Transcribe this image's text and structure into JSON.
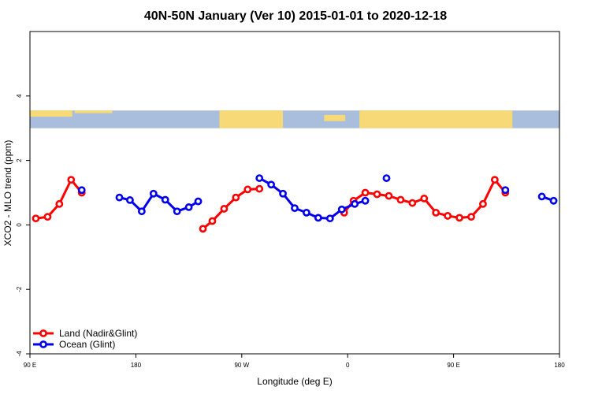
{
  "chart_data": {
    "type": "line",
    "title": "40N-50N January (Ver 10)   2015-01-01 to 2020-12-18",
    "xlabel": "Longitude (deg E)",
    "ylabel": "XCO2 - MLO trend (ppm)",
    "xlim": [
      90,
      540
    ],
    "ylim": [
      -4,
      6
    ],
    "x_ticks": [
      {
        "value": 90,
        "label": "90 E"
      },
      {
        "value": 180,
        "label": "180"
      },
      {
        "value": 270,
        "label": "90 W"
      },
      {
        "value": 360,
        "label": "0"
      },
      {
        "value": 450,
        "label": "90 E"
      },
      {
        "value": 540,
        "label": "180"
      }
    ],
    "y_ticks": [
      {
        "value": -4,
        "label": "-4"
      },
      {
        "value": -2,
        "label": "-2"
      },
      {
        "value": 0,
        "label": "0"
      },
      {
        "value": 2,
        "label": "2"
      },
      {
        "value": 4,
        "label": "4"
      }
    ],
    "legend": {
      "position": "bottom-left",
      "entries": [
        {
          "label": "Land (Nadir&Glint)",
          "color": "#ff0000"
        },
        {
          "label": "Ocean (Glint)",
          "color": "#0000ee"
        }
      ]
    },
    "map_strip": {
      "lat_range": "40N-50N",
      "y_range": [
        3.0,
        3.55
      ],
      "land_color": "#f8d977",
      "ocean_color": "#a8bedc"
    },
    "series": [
      {
        "name": "Land (Nadir&Glint)",
        "color": "#ff0000",
        "segments": [
          [
            [
              95,
              0.2
            ],
            [
              105,
              0.25
            ],
            [
              115,
              0.65
            ],
            [
              125,
              1.4
            ],
            [
              134,
              1.0
            ]
          ],
          [
            [
              237,
              -0.12
            ],
            [
              245,
              0.12
            ],
            [
              255,
              0.5
            ],
            [
              265,
              0.85
            ],
            [
              275,
              1.1
            ],
            [
              285,
              1.12
            ]
          ],
          [
            [
              357,
              0.38
            ],
            [
              365,
              0.75
            ],
            [
              375,
              1.0
            ],
            [
              385,
              0.95
            ],
            [
              395,
              0.9
            ],
            [
              405,
              0.78
            ],
            [
              415,
              0.68
            ],
            [
              425,
              0.82
            ],
            [
              435,
              0.38
            ],
            [
              445,
              0.28
            ],
            [
              455,
              0.22
            ],
            [
              465,
              0.25
            ],
            [
              475,
              0.65
            ],
            [
              485,
              1.4
            ],
            [
              494,
              1.0
            ]
          ]
        ]
      },
      {
        "name": "Ocean (Glint)",
        "color": "#0000ee",
        "segments": [
          [
            [
              134,
              1.08
            ]
          ],
          [
            [
              166,
              0.85
            ],
            [
              175,
              0.77
            ],
            [
              185,
              0.42
            ],
            [
              195,
              0.97
            ],
            [
              205,
              0.78
            ],
            [
              215,
              0.42
            ],
            [
              225,
              0.55
            ],
            [
              233,
              0.73
            ]
          ],
          [
            [
              285,
              1.45
            ],
            [
              295,
              1.25
            ],
            [
              305,
              0.97
            ],
            [
              315,
              0.52
            ],
            [
              325,
              0.38
            ],
            [
              335,
              0.22
            ],
            [
              345,
              0.2
            ],
            [
              355,
              0.48
            ],
            [
              366,
              0.65
            ],
            [
              375,
              0.75
            ]
          ],
          [
            [
              393,
              1.45
            ]
          ],
          [
            [
              494,
              1.08
            ]
          ],
          [
            [
              525,
              0.88
            ],
            [
              535,
              0.75
            ]
          ]
        ]
      }
    ],
    "grid": false
  }
}
